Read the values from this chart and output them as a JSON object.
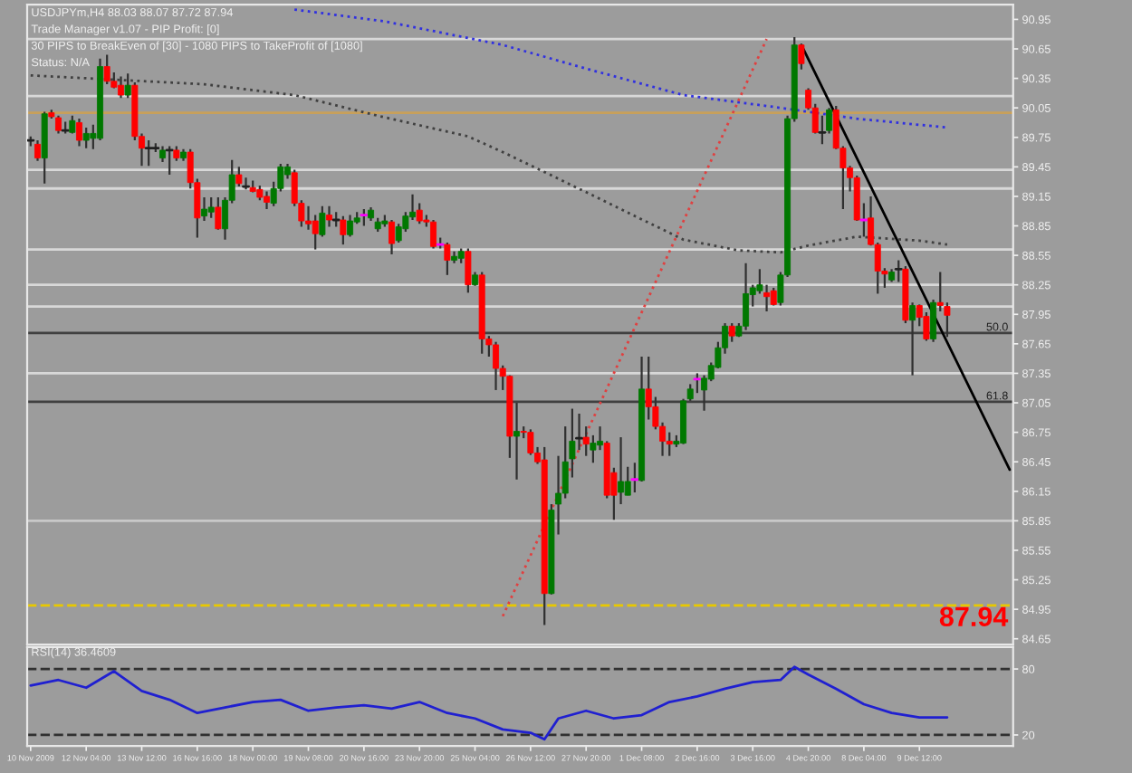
{
  "chart_data": [
    {
      "type": "candlestick",
      "title": "USDJPYm,H4 88.03 88.07 87.72 87.94",
      "annotations": [
        "Trade Manager v1.07 - PIP Profit: [0]",
        "30 PIPS to BreakEven of [30] - 1080 PIPS to TakeProfit of [1080]",
        "Status: N/A",
        {
          "text": "50.0",
          "y": 87.76
        },
        {
          "text": "61.8",
          "y": 87.06
        },
        "87.94"
      ],
      "categories": [
        null,
        null,
        null,
        null,
        null,
        null,
        null,
        null,
        null,
        null,
        null,
        null,
        null,
        null,
        null,
        null,
        null,
        null,
        null,
        null,
        null,
        null,
        null,
        null,
        null,
        null,
        null,
        null,
        null,
        null,
        null,
        null,
        null,
        null,
        null,
        null,
        null,
        null,
        null,
        null,
        null,
        null,
        null,
        null,
        null,
        null,
        null,
        null,
        null,
        null,
        null,
        null,
        null,
        null,
        null,
        null,
        null,
        null,
        null,
        null,
        null,
        null,
        null,
        null,
        null,
        null,
        null,
        null,
        null,
        null,
        null,
        null,
        null,
        null,
        null,
        null,
        null,
        null,
        null,
        null,
        null,
        null,
        null,
        null,
        null,
        null,
        null,
        null,
        null,
        null,
        null,
        null,
        null,
        null,
        null,
        null,
        null,
        null,
        null,
        null,
        null,
        null,
        null,
        null,
        null,
        null,
        null,
        null,
        null,
        null,
        null,
        null,
        null,
        null,
        null,
        null,
        null,
        null,
        null,
        null,
        null,
        null,
        null,
        null,
        null,
        null,
        null,
        null,
        null,
        null,
        null,
        null,
        null,
        null,
        null,
        null,
        null,
        null,
        null,
        null,
        null,
        null
      ],
      "ohlc": [
        [
          89.72,
          89.76,
          89.66,
          89.72
        ],
        [
          89.68,
          89.72,
          89.51,
          89.54
        ],
        [
          89.54,
          90.01,
          89.28,
          89.99
        ],
        [
          90.0,
          90.03,
          89.94,
          89.96
        ],
        [
          89.95,
          89.97,
          89.79,
          89.82
        ],
        [
          89.82,
          89.91,
          89.79,
          89.82
        ],
        [
          89.8,
          89.97,
          89.79,
          89.92
        ],
        [
          89.9,
          89.94,
          89.66,
          89.72
        ],
        [
          89.72,
          89.85,
          89.64,
          89.79
        ],
        [
          89.74,
          89.88,
          89.63,
          89.79
        ],
        [
          89.74,
          90.55,
          89.72,
          90.47
        ],
        [
          90.47,
          90.59,
          90.29,
          90.32
        ],
        [
          90.32,
          90.41,
          90.25,
          90.26
        ],
        [
          90.28,
          90.37,
          90.15,
          90.18
        ],
        [
          90.18,
          90.4,
          90.15,
          90.28
        ],
        [
          90.28,
          90.31,
          89.72,
          89.76
        ],
        [
          89.76,
          89.79,
          89.46,
          89.64
        ],
        [
          89.64,
          89.72,
          89.46,
          89.64
        ],
        [
          89.64,
          89.69,
          89.6,
          89.64
        ],
        [
          89.54,
          89.66,
          89.5,
          89.62
        ],
        [
          89.62,
          89.66,
          89.37,
          89.62
        ],
        [
          89.62,
          89.66,
          89.51,
          89.54
        ],
        [
          89.54,
          89.63,
          89.51,
          89.6
        ],
        [
          89.6,
          89.63,
          89.23,
          89.29
        ],
        [
          89.29,
          89.33,
          88.73,
          88.93
        ],
        [
          88.95,
          89.14,
          88.9,
          89.02
        ],
        [
          88.99,
          89.14,
          88.93,
          89.04
        ],
        [
          89.04,
          89.14,
          88.81,
          88.82
        ],
        [
          88.82,
          89.14,
          88.71,
          89.11
        ],
        [
          89.11,
          89.52,
          89.08,
          89.37
        ],
        [
          89.37,
          89.45,
          89.25,
          89.28
        ],
        [
          89.25,
          89.34,
          89.22,
          89.25
        ],
        [
          89.24,
          89.31,
          89.19,
          89.2
        ],
        [
          89.22,
          89.26,
          89.11,
          89.14
        ],
        [
          89.15,
          89.2,
          89.02,
          89.09
        ],
        [
          89.08,
          89.3,
          89.05,
          89.23
        ],
        [
          89.23,
          89.48,
          89.2,
          89.45
        ],
        [
          89.37,
          89.48,
          89.33,
          89.45
        ],
        [
          89.39,
          89.42,
          89.05,
          89.08
        ],
        [
          89.08,
          89.11,
          88.84,
          88.9
        ],
        [
          88.9,
          89.05,
          88.81,
          88.87
        ],
        [
          88.9,
          88.96,
          88.61,
          88.77
        ],
        [
          88.76,
          89.05,
          88.74,
          88.98
        ],
        [
          88.96,
          89.05,
          88.84,
          88.91
        ],
        [
          88.91,
          88.99,
          88.84,
          88.91
        ],
        [
          88.91,
          88.95,
          88.66,
          88.76
        ],
        [
          88.76,
          88.96,
          88.74,
          88.9
        ],
        [
          88.89,
          88.99,
          88.87,
          88.93
        ],
        [
          88.96,
          89.02,
          88.85,
          88.96
        ],
        [
          88.93,
          89.04,
          88.9,
          89.01
        ],
        [
          88.82,
          88.93,
          88.79,
          88.89
        ],
        [
          88.87,
          88.96,
          88.84,
          88.9
        ],
        [
          88.89,
          88.91,
          88.56,
          88.67
        ],
        [
          88.7,
          88.87,
          88.68,
          88.84
        ],
        [
          88.82,
          88.99,
          88.79,
          88.95
        ],
        [
          88.94,
          89.17,
          88.91,
          88.99
        ],
        [
          89.01,
          89.08,
          88.87,
          88.9
        ],
        [
          88.91,
          88.96,
          88.84,
          88.89
        ],
        [
          88.89,
          88.91,
          88.62,
          88.64
        ],
        [
          88.66,
          88.73,
          88.62,
          88.66
        ],
        [
          88.66,
          88.68,
          88.35,
          88.5
        ],
        [
          88.5,
          88.59,
          88.47,
          88.54
        ],
        [
          88.52,
          88.62,
          88.47,
          88.59
        ],
        [
          88.59,
          88.62,
          88.17,
          88.25
        ],
        [
          88.25,
          88.38,
          88.24,
          88.35
        ],
        [
          88.35,
          88.38,
          87.55,
          87.7
        ],
        [
          87.7,
          87.73,
          87.52,
          87.64
        ],
        [
          87.64,
          87.67,
          87.18,
          87.4
        ],
        [
          87.4,
          87.43,
          87.18,
          87.32
        ],
        [
          87.32,
          87.33,
          86.49,
          86.71
        ],
        [
          86.71,
          87.05,
          86.27,
          86.76
        ],
        [
          86.76,
          86.81,
          86.69,
          86.75
        ],
        [
          86.75,
          86.78,
          86.52,
          86.54
        ],
        [
          86.54,
          86.6,
          86.43,
          86.45
        ],
        [
          86.47,
          86.6,
          84.79,
          85.11
        ],
        [
          85.11,
          86.02,
          85.1,
          85.96
        ],
        [
          86.02,
          86.51,
          85.71,
          86.13
        ],
        [
          86.13,
          86.81,
          86.08,
          86.45
        ],
        [
          86.48,
          86.99,
          86.29,
          86.66
        ],
        [
          86.69,
          86.94,
          86.57,
          86.69
        ],
        [
          86.7,
          86.81,
          86.51,
          86.63
        ],
        [
          86.57,
          86.72,
          86.44,
          86.64
        ],
        [
          86.62,
          86.81,
          86.57,
          86.66
        ],
        [
          86.64,
          86.66,
          86.08,
          86.11
        ],
        [
          86.34,
          86.39,
          85.86,
          86.11
        ],
        [
          86.14,
          86.7,
          86.02,
          86.25
        ],
        [
          86.11,
          86.4,
          86.11,
          86.25
        ],
        [
          86.27,
          86.44,
          86.14,
          86.27
        ],
        [
          86.26,
          87.52,
          86.25,
          87.19
        ],
        [
          87.19,
          87.52,
          86.88,
          87.01
        ],
        [
          87.01,
          87.11,
          86.78,
          86.81
        ],
        [
          86.81,
          86.85,
          86.51,
          86.66
        ],
        [
          86.66,
          86.75,
          86.51,
          86.63
        ],
        [
          86.63,
          86.72,
          86.6,
          86.66
        ],
        [
          86.64,
          87.09,
          86.63,
          87.07
        ],
        [
          87.09,
          87.24,
          87.07,
          87.19
        ],
        [
          87.29,
          87.35,
          87.15,
          87.29
        ],
        [
          87.18,
          87.33,
          86.97,
          87.3
        ],
        [
          87.29,
          87.46,
          87.27,
          87.43
        ],
        [
          87.41,
          87.67,
          87.4,
          87.61
        ],
        [
          87.61,
          87.86,
          87.55,
          87.83
        ],
        [
          87.83,
          87.86,
          87.67,
          87.73
        ],
        [
          87.73,
          87.86,
          87.72,
          87.83
        ],
        [
          87.83,
          88.47,
          87.79,
          88.16
        ],
        [
          88.15,
          88.25,
          88.03,
          88.22
        ],
        [
          88.19,
          88.41,
          88.16,
          88.25
        ],
        [
          88.17,
          88.25,
          87.98,
          88.13
        ],
        [
          88.19,
          88.22,
          88.04,
          88.05
        ],
        [
          88.07,
          88.38,
          88.04,
          88.35
        ],
        [
          88.35,
          89.97,
          88.33,
          89.94
        ],
        [
          89.94,
          90.77,
          89.91,
          90.69
        ],
        [
          90.69,
          90.7,
          90.44,
          90.5
        ],
        [
          90.23,
          90.25,
          90.03,
          90.05
        ],
        [
          90.05,
          90.09,
          89.79,
          89.8
        ],
        [
          89.8,
          89.97,
          89.68,
          89.8
        ],
        [
          89.82,
          90.05,
          89.79,
          90.03
        ],
        [
          90.03,
          90.07,
          89.63,
          89.64
        ],
        [
          89.64,
          89.66,
          89.02,
          89.44
        ],
        [
          89.44,
          89.46,
          89.2,
          89.34
        ],
        [
          89.34,
          89.36,
          88.9,
          88.91
        ],
        [
          88.91,
          89.08,
          88.74,
          88.91
        ],
        [
          88.93,
          89.15,
          88.65,
          88.66
        ],
        [
          88.66,
          88.68,
          88.16,
          88.39
        ],
        [
          88.39,
          88.42,
          88.22,
          88.36
        ],
        [
          88.3,
          88.41,
          88.28,
          88.38
        ],
        [
          88.41,
          88.5,
          88.28,
          88.41
        ],
        [
          88.41,
          88.44,
          87.86,
          87.89
        ],
        [
          87.89,
          88.07,
          87.33,
          88.04
        ],
        [
          88.04,
          88.05,
          87.83,
          87.92
        ],
        [
          87.93,
          87.97,
          87.68,
          87.7
        ],
        [
          87.7,
          88.1,
          87.67,
          88.07
        ],
        [
          88.07,
          88.38,
          87.98,
          88.04
        ],
        [
          88.03,
          88.07,
          87.72,
          87.94
        ],
        null,
        null,
        null,
        null,
        null,
        null,
        null,
        null,
        null
      ],
      "colors": [
        "#202020",
        "#ff0000",
        "#007800",
        "#ff0000",
        "#ff0000",
        "#202020",
        "#007800",
        "#ff0000",
        "#007800",
        "#007800",
        "#007800",
        "#ff0000",
        "#ff0000",
        "#ff0000",
        "#007800",
        "#ff0000",
        "#ff0000",
        "#202020",
        "#202020",
        "#007800",
        "#202020",
        "#ff0000",
        "#007800",
        "#ff0000",
        "#ff0000",
        "#007800",
        "#007800",
        "#ff0000",
        "#007800",
        "#007800",
        "#ff0000",
        "#202020",
        "#ff0000",
        "#ff0000",
        "#ff0000",
        "#007800",
        "#007800",
        "#007800",
        "#ff0000",
        "#ff0000",
        "#ff0000",
        "#ff0000",
        "#007800",
        "#ff0000",
        "#202020",
        "#ff0000",
        "#007800",
        "#007800",
        "#ff00ff",
        "#007800",
        "#007800",
        "#007800",
        "#ff0000",
        "#007800",
        "#007800",
        "#007800",
        "#ff0000",
        "#ff0000",
        "#ff0000",
        "#ff00ff",
        "#ff0000",
        "#007800",
        "#007800",
        "#ff0000",
        "#007800",
        "#ff0000",
        "#ff0000",
        "#ff0000",
        "#ff0000",
        "#ff0000",
        "#007800",
        "#ff0000",
        "#ff0000",
        "#ff0000",
        "#ff0000",
        "#007800",
        "#007800",
        "#007800",
        "#007800",
        "#202020",
        "#ff0000",
        "#007800",
        "#007800",
        "#ff0000",
        "#ff0000",
        "#007800",
        "#007800",
        "#ff00ff",
        "#007800",
        "#ff0000",
        "#ff0000",
        "#ff0000",
        "#ff0000",
        "#007800",
        "#007800",
        "#007800",
        "#ff00ff",
        "#007800",
        "#007800",
        "#007800",
        "#007800",
        "#ff0000",
        "#007800",
        "#007800",
        "#007800",
        "#007800",
        "#ff0000",
        "#ff0000",
        "#007800",
        "#007800",
        "#007800",
        "#ff0000",
        "#ff0000",
        "#ff0000",
        "#202020",
        "#007800",
        "#ff0000",
        "#ff0000",
        "#ff0000",
        "#ff0000",
        "#ff00ff",
        "#ff0000",
        "#ff0000",
        "#ff0000",
        "#007800",
        "#202020",
        "#ff0000",
        "#007800",
        "#ff0000",
        "#ff0000",
        "#007800",
        "#ff0000",
        "#ff0000",
        null,
        null,
        null,
        null,
        null,
        null,
        null,
        null,
        null
      ],
      "series": [
        {
          "type": "line",
          "color": "#404040",
          "line_style": "dotted",
          "values": [
            90.38,
            null,
            null,
            null,
            null,
            null,
            null,
            null,
            null,
            null,
            null,
            null,
            null,
            null,
            null,
            null,
            null,
            null,
            null,
            null,
            null,
            null,
            null,
            null,
            null,
            90.29,
            null,
            null,
            null,
            null,
            null,
            null,
            null,
            null,
            null,
            null,
            null,
            null,
            90.18,
            null,
            null,
            null,
            null,
            null,
            null,
            null,
            null,
            null,
            null,
            null,
            89.97,
            null,
            null,
            null,
            null,
            null,
            null,
            null,
            null,
            null,
            null,
            null,
            null,
            89.76,
            null,
            null,
            null,
            null,
            89.6,
            null,
            null,
            null,
            null,
            null,
            null,
            null,
            89.33,
            null,
            null,
            null,
            null,
            null,
            null,
            null,
            null,
            89.02,
            null,
            null,
            null,
            null,
            null,
            null,
            null,
            null,
            88.71,
            null,
            null,
            null,
            null,
            null,
            null,
            null,
            88.6,
            null,
            null,
            null,
            null,
            null,
            88.58,
            null,
            null,
            null,
            88.65,
            null,
            null,
            null,
            null,
            null,
            null,
            88.74,
            null,
            null,
            null,
            null,
            null,
            null,
            null,
            null,
            88.7,
            null,
            null,
            null,
            88.66,
            null,
            null,
            null,
            null,
            null,
            null,
            null,
            null,
            null
          ]
        },
        {
          "type": "line",
          "color": "#3030e0",
          "line_style": "dotted",
          "values": [
            null,
            null,
            null,
            null,
            null,
            null,
            null,
            null,
            null,
            null,
            null,
            null,
            null,
            null,
            null,
            null,
            null,
            null,
            null,
            null,
            null,
            null,
            null,
            null,
            null,
            null,
            null,
            null,
            null,
            null,
            null,
            null,
            null,
            null,
            null,
            null,
            null,
            null,
            91.05,
            null,
            null,
            null,
            null,
            null,
            null,
            null,
            null,
            null,
            null,
            null,
            null,
            90.93,
            null,
            null,
            null,
            null,
            null,
            null,
            null,
            null,
            null,
            null,
            null,
            null,
            null,
            null,
            null,
            null,
            90.69,
            null,
            null,
            null,
            null,
            null,
            null,
            null,
            null,
            null,
            null,
            null,
            null,
            90.43,
            null,
            null,
            null,
            null,
            null,
            null,
            null,
            null,
            null,
            null,
            null,
            null,
            90.18,
            null,
            null,
            null,
            null,
            null,
            null,
            null,
            null,
            null,
            null,
            null,
            null,
            90.06,
            null,
            null,
            null,
            null,
            null,
            null,
            null,
            null,
            null,
            null,
            null,
            89.94,
            null,
            null,
            null,
            null,
            null,
            null,
            null,
            null,
            null,
            null,
            null,
            null,
            89.85,
            null,
            null,
            null,
            null,
            null,
            null,
            null,
            null,
            null
          ]
        },
        {
          "type": "line",
          "color": "#e04040",
          "line_style": "dotted",
          "values": [
            null,
            null,
            null,
            null,
            null,
            null,
            null,
            null,
            null,
            null,
            null,
            null,
            null,
            null,
            null,
            null,
            null,
            null,
            null,
            null,
            null,
            null,
            null,
            null,
            null,
            null,
            null,
            null,
            null,
            null,
            null,
            null,
            null,
            null,
            null,
            null,
            null,
            null,
            null,
            null,
            null,
            null,
            null,
            null,
            null,
            null,
            null,
            null,
            null,
            null,
            null,
            null,
            null,
            null,
            null,
            null,
            null,
            null,
            null,
            null,
            null,
            null,
            null,
            null,
            null,
            null,
            null,
            null,
            84.88,
            null,
            null,
            null,
            null,
            null,
            null,
            null,
            null,
            null,
            null,
            null,
            null,
            null,
            null,
            null,
            null,
            null,
            null,
            null,
            null,
            null,
            null,
            null,
            null,
            null,
            null,
            null,
            null,
            null,
            null,
            null,
            null,
            null,
            null,
            null,
            null,
            null,
            90.75,
            null,
            null,
            null,
            null,
            null,
            null,
            null,
            null,
            null,
            null,
            null,
            null,
            null,
            null,
            null,
            null,
            null,
            null,
            null,
            null,
            null,
            null,
            null,
            null,
            null,
            null,
            null,
            null,
            null,
            null,
            null,
            null,
            null,
            null,
            null
          ]
        },
        {
          "type": "line",
          "color": "#000000",
          "line_style": "solid",
          "values": [
            null,
            null,
            null,
            null,
            null,
            null,
            null,
            null,
            null,
            null,
            null,
            null,
            null,
            null,
            null,
            null,
            null,
            null,
            null,
            null,
            null,
            null,
            null,
            null,
            null,
            null,
            null,
            null,
            null,
            null,
            null,
            null,
            null,
            null,
            null,
            null,
            null,
            null,
            null,
            null,
            null,
            null,
            null,
            null,
            null,
            null,
            null,
            null,
            null,
            null,
            null,
            null,
            null,
            null,
            null,
            null,
            null,
            null,
            null,
            null,
            null,
            null,
            null,
            null,
            null,
            null,
            null,
            null,
            null,
            null,
            null,
            null,
            null,
            null,
            null,
            null,
            null,
            null,
            null,
            null,
            null,
            null,
            null,
            null,
            null,
            null,
            null,
            null,
            null,
            null,
            null,
            null,
            null,
            null,
            null,
            null,
            null,
            null,
            null,
            null,
            null,
            null,
            null,
            null,
            null,
            null,
            null,
            null,
            null,
            null,
            null,
            90.69,
            null,
            null,
            null,
            null,
            null,
            null,
            null,
            null,
            null,
            null,
            null,
            null,
            null,
            null,
            null,
            null,
            null,
            null,
            null,
            null,
            null,
            null,
            null,
            null,
            null,
            null,
            null,
            null,
            null,
            86.37
          ]
        }
      ],
      "ref_lines": [
        {
          "axis": "y",
          "value": 90.75,
          "color": "#d8d8d8"
        },
        {
          "axis": "y",
          "value": 90.17,
          "color": "#d8d8d8"
        },
        {
          "axis": "y",
          "value": 90.0,
          "color": "#c8a05a"
        },
        {
          "axis": "y",
          "value": 89.42,
          "color": "#d8d8d8"
        },
        {
          "axis": "y",
          "value": 89.23,
          "color": "#d8d8d8"
        },
        {
          "axis": "y",
          "value": 88.61,
          "color": "#d8d8d8"
        },
        {
          "axis": "y",
          "value": 88.25,
          "color": "#d8d8d8"
        },
        {
          "axis": "y",
          "value": 88.03,
          "color": "#d8d8d8"
        },
        {
          "axis": "y",
          "value": 87.35,
          "color": "#d8d8d8"
        },
        {
          "axis": "y",
          "value": 85.85,
          "color": "#c8c8c8"
        },
        {
          "axis": "y",
          "value": 84.99,
          "color": "#e8c800",
          "line_style": "dashed"
        },
        {
          "axis": "y",
          "value": 87.76,
          "color": "#404040"
        },
        {
          "axis": "y",
          "value": 87.06,
          "color": "#404040"
        }
      ],
      "ylim": [
        84.59,
        91.1
      ],
      "yticks": [
        84.65,
        84.95,
        85.25,
        85.55,
        85.85,
        86.15,
        86.45,
        86.75,
        87.05,
        87.35,
        87.65,
        87.95,
        88.25,
        88.55,
        88.85,
        89.15,
        89.45,
        89.75,
        90.05,
        90.35,
        90.65,
        90.95
      ],
      "tick_labels": "y"
    },
    {
      "type": "line",
      "title": "RSI(14) 36.4609",
      "categories": [
        "10 Nov 2009",
        null,
        null,
        null,
        null,
        null,
        null,
        null,
        "12 Nov 04:00",
        null,
        null,
        null,
        null,
        null,
        null,
        null,
        "13 Nov 12:00",
        null,
        null,
        null,
        null,
        null,
        null,
        null,
        "16 Nov 16:00",
        null,
        null,
        null,
        null,
        null,
        null,
        null,
        "18 Nov 00:00",
        null,
        null,
        null,
        null,
        null,
        null,
        null,
        "19 Nov 08:00",
        null,
        null,
        null,
        null,
        null,
        null,
        null,
        "20 Nov 16:00",
        null,
        null,
        null,
        null,
        null,
        null,
        null,
        "23 Nov 20:00",
        null,
        null,
        null,
        null,
        null,
        null,
        null,
        "25 Nov 04:00",
        null,
        null,
        null,
        null,
        null,
        null,
        null,
        "26 Nov 12:00",
        null,
        null,
        null,
        null,
        null,
        null,
        null,
        "27 Nov 20:00",
        null,
        null,
        null,
        null,
        null,
        null,
        null,
        "1 Dec 08:00",
        null,
        null,
        null,
        null,
        null,
        null,
        null,
        "2 Dec 16:00",
        null,
        null,
        null,
        null,
        null,
        null,
        null,
        "3 Dec 16:00",
        null,
        null,
        null,
        null,
        null,
        null,
        null,
        "4 Dec 20:00",
        null,
        null,
        null,
        null,
        null,
        null,
        null,
        "8 Dec 04:00",
        null,
        null,
        null,
        null,
        null,
        null,
        null,
        "9 Dec 12:00",
        null,
        null,
        null,
        null,
        null,
        null,
        null,
        null,
        null,
        null,
        null,
        null,
        null
      ],
      "series": [
        {
          "color": "#2020d0",
          "values": [
            65,
            null,
            null,
            null,
            70,
            null,
            null,
            null,
            63,
            null,
            null,
            null,
            78,
            null,
            null,
            null,
            60,
            null,
            null,
            null,
            52,
            null,
            null,
            null,
            40,
            null,
            null,
            null,
            45,
            null,
            null,
            null,
            50,
            null,
            null,
            null,
            52,
            null,
            null,
            null,
            42,
            null,
            null,
            null,
            45,
            null,
            null,
            null,
            47,
            null,
            null,
            null,
            44,
            null,
            null,
            null,
            50,
            null,
            null,
            null,
            40,
            null,
            null,
            null,
            35,
            null,
            null,
            null,
            25,
            null,
            null,
            null,
            22,
            null,
            16,
            null,
            35,
            null,
            null,
            null,
            42,
            null,
            null,
            null,
            35,
            null,
            null,
            null,
            38,
            null,
            null,
            null,
            50,
            null,
            null,
            null,
            55,
            null,
            null,
            null,
            62,
            null,
            null,
            null,
            68,
            null,
            null,
            null,
            70,
            null,
            82,
            null,
            75,
            null,
            null,
            null,
            62,
            null,
            null,
            null,
            48,
            null,
            null,
            null,
            40,
            null,
            null,
            null,
            36,
            null,
            null,
            null,
            36,
            null,
            null,
            null,
            null,
            null,
            null,
            null,
            null,
            null
          ]
        }
      ],
      "ref_lines": [
        {
          "axis": "y",
          "value": 80,
          "color": "#303030",
          "line_style": "dashed"
        },
        {
          "axis": "y",
          "value": 20,
          "color": "#303030",
          "line_style": "dashed"
        }
      ],
      "ylim": [
        10,
        100
      ],
      "yticks": [
        20,
        80
      ]
    }
  ]
}
